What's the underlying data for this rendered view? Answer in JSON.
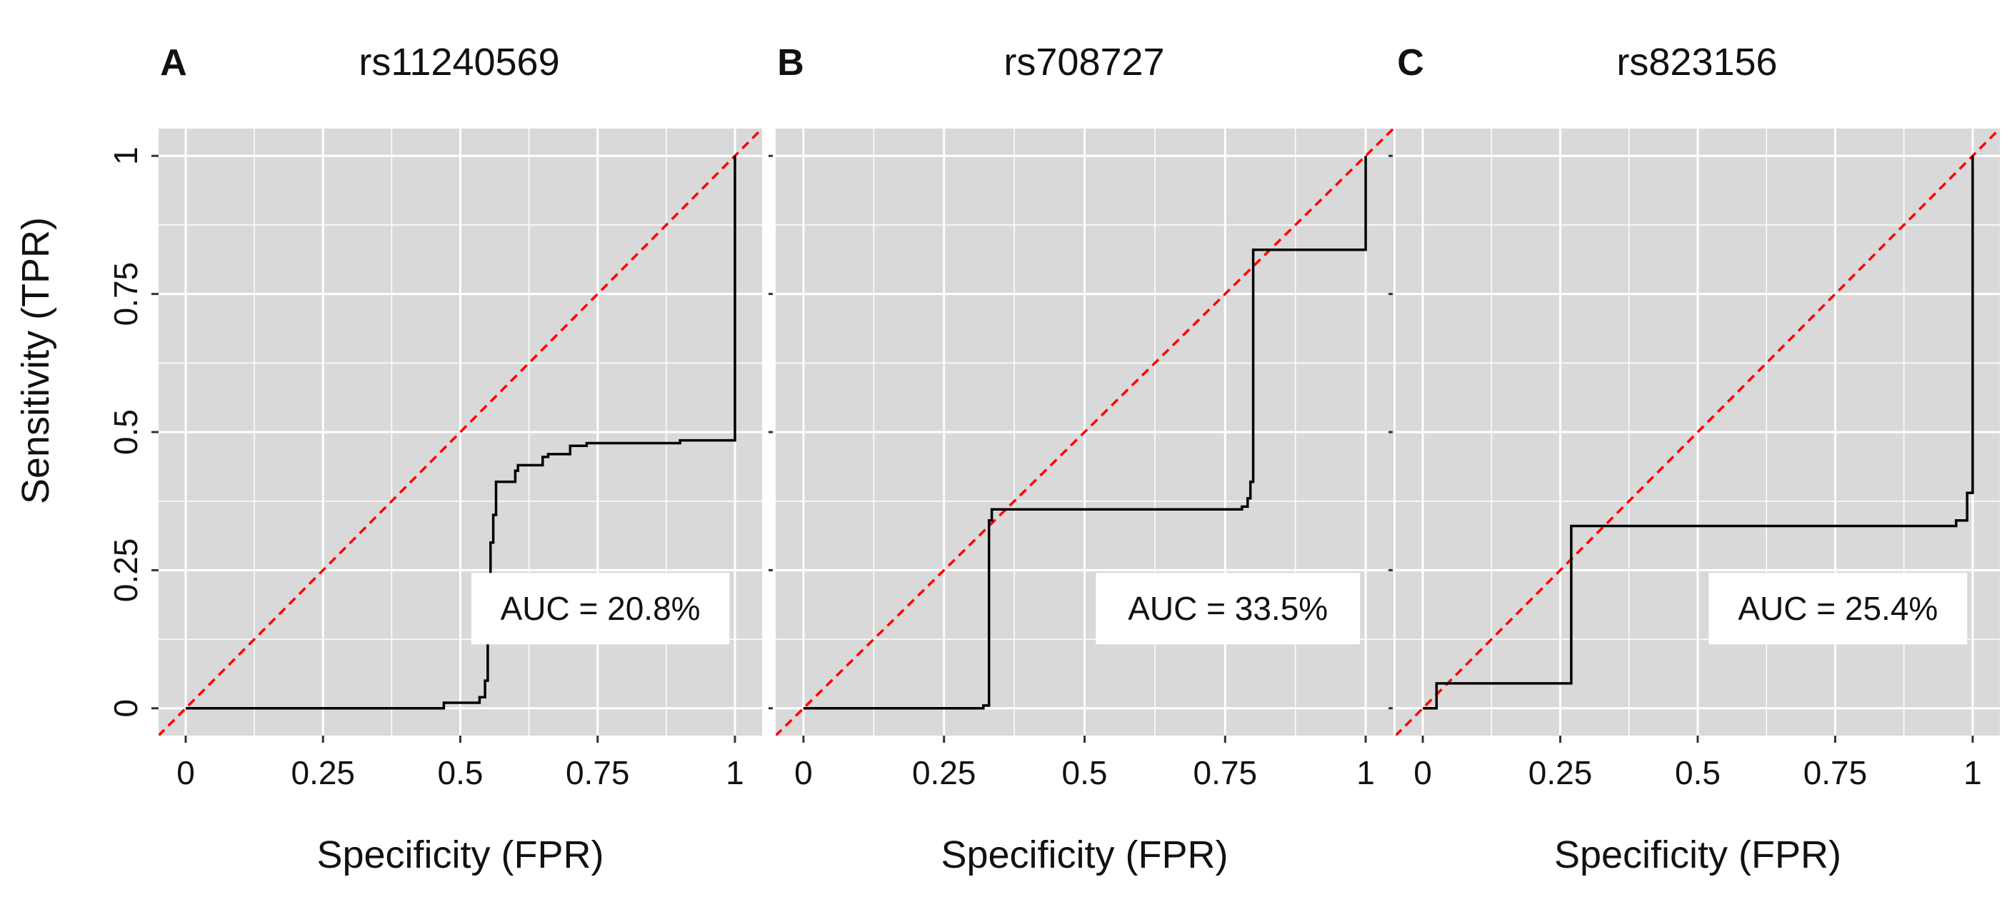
{
  "figure": {
    "ylabel": "Sensitivity (TPR)",
    "xlabel": "Specificity (FPR)",
    "colors": {
      "panel_bg": "#d9d9d9",
      "grid": "#ffffff",
      "roc": "#000000",
      "diagonal": "#ff0000"
    }
  },
  "chart_data": [
    {
      "type": "line",
      "letter": "A",
      "title": "rs11240569",
      "xlabel": "Specificity (FPR)",
      "ylabel": "Sensitivity (TPR)",
      "xlim": [
        0,
        1
      ],
      "ylim": [
        0,
        1
      ],
      "x_ticks": [
        0,
        0.25,
        0.5,
        0.75,
        1
      ],
      "x_tick_labels": [
        "0",
        "0.25",
        "0.5",
        "0.75",
        "1"
      ],
      "y_ticks": [
        0,
        0.25,
        0.5,
        0.75,
        1
      ],
      "y_tick_labels": [
        "0",
        "0.25",
        "0.5",
        "0.75",
        "1"
      ],
      "auc_label": "AUC = 20.8%",
      "series": [
        {
          "name": "ROC",
          "x": [
            0,
            0.47,
            0.47,
            0.535,
            0.535,
            0.545,
            0.545,
            0.55,
            0.55,
            0.555,
            0.555,
            0.56,
            0.56,
            0.565,
            0.565,
            0.57,
            0.57,
            0.6,
            0.6,
            0.605,
            0.605,
            0.62,
            0.62,
            0.65,
            0.65,
            0.66,
            0.66,
            0.7,
            0.7,
            0.73,
            0.73,
            0.9,
            0.9,
            1,
            1
          ],
          "y": [
            0,
            0,
            0.01,
            0.01,
            0.02,
            0.02,
            0.05,
            0.05,
            0.2,
            0.2,
            0.3,
            0.3,
            0.35,
            0.35,
            0.41,
            0.41,
            0.41,
            0.41,
            0.43,
            0.43,
            0.44,
            0.44,
            0.44,
            0.44,
            0.455,
            0.455,
            0.46,
            0.46,
            0.475,
            0.475,
            0.48,
            0.48,
            0.485,
            0.485,
            1
          ]
        },
        {
          "name": "chance",
          "x": [
            -0.05,
            1.05
          ],
          "y": [
            -0.05,
            1.05
          ]
        }
      ]
    },
    {
      "type": "line",
      "letter": "B",
      "title": "rs708727",
      "xlabel": "Specificity (FPR)",
      "ylabel": "Sensitivity (TPR)",
      "xlim": [
        0,
        1
      ],
      "ylim": [
        0,
        1
      ],
      "x_ticks": [
        0,
        0.25,
        0.5,
        0.75,
        1
      ],
      "x_tick_labels": [
        "0",
        "0.25",
        "0.5",
        "0.75",
        "1"
      ],
      "y_ticks": [
        0,
        0.25,
        0.5,
        0.75,
        1
      ],
      "y_tick_labels": [
        "0",
        "0.25",
        "0.5",
        "0.75",
        "1"
      ],
      "auc_label": "AUC = 33.5%",
      "series": [
        {
          "name": "ROC",
          "x": [
            0,
            0.32,
            0.32,
            0.33,
            0.33,
            0.335,
            0.335,
            0.78,
            0.78,
            0.79,
            0.79,
            0.795,
            0.795,
            0.8,
            0.8,
            1,
            1
          ],
          "y": [
            0,
            0,
            0.005,
            0.005,
            0.34,
            0.34,
            0.36,
            0.36,
            0.365,
            0.365,
            0.38,
            0.38,
            0.41,
            0.41,
            0.83,
            0.83,
            1
          ]
        },
        {
          "name": "chance",
          "x": [
            -0.05,
            1.05
          ],
          "y": [
            -0.05,
            1.05
          ]
        }
      ]
    },
    {
      "type": "line",
      "letter": "C",
      "title": "rs823156",
      "xlabel": "Specificity (FPR)",
      "ylabel": "Sensitivity (TPR)",
      "xlim": [
        0,
        1
      ],
      "ylim": [
        0,
        1
      ],
      "x_ticks": [
        0,
        0.25,
        0.5,
        0.75,
        1
      ],
      "x_tick_labels": [
        "0",
        "0.25",
        "0.5",
        "0.75",
        "1"
      ],
      "y_ticks": [
        0,
        0.25,
        0.5,
        0.75,
        1
      ],
      "y_tick_labels": [
        "0",
        "0.25",
        "0.5",
        "0.75",
        "1"
      ],
      "auc_label": "AUC = 25.4%",
      "series": [
        {
          "name": "ROC",
          "x": [
            0,
            0.025,
            0.025,
            0.27,
            0.27,
            0.97,
            0.97,
            0.99,
            0.99,
            1,
            1
          ],
          "y": [
            0,
            0,
            0.045,
            0.045,
            0.33,
            0.33,
            0.34,
            0.34,
            0.39,
            0.39,
            1
          ]
        },
        {
          "name": "chance",
          "x": [
            -0.05,
            1.05
          ],
          "y": [
            -0.05,
            1.05
          ]
        }
      ]
    }
  ]
}
